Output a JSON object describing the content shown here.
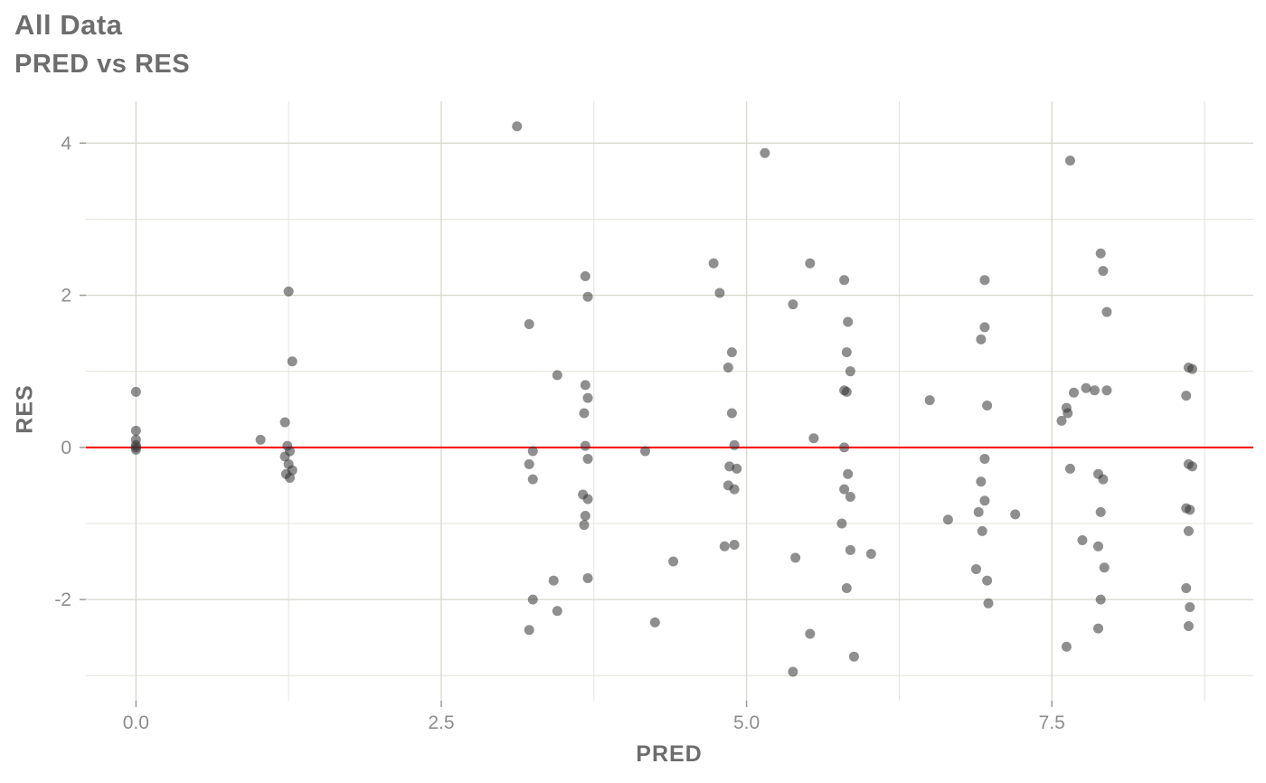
{
  "header": {
    "title": "All Data",
    "subtitle": "PRED vs RES"
  },
  "axes": {
    "xlabel": "PRED",
    "ylabel": "RES"
  },
  "colors": {
    "title_text": "#6d6d6d",
    "tick_text": "#8d8d8d",
    "grid_major": "#d9d9d0",
    "grid_minor": "#e4e4dc",
    "reference_line": "#ff0000",
    "point_fill": "#333333",
    "background": "#ffffff"
  },
  "chart_data": {
    "type": "scatter",
    "title": "All Data",
    "subtitle": "PRED vs RES",
    "xlabel": "PRED",
    "ylabel": "RES",
    "xlim": [
      -0.41,
      9.15
    ],
    "ylim": [
      -3.33,
      4.55
    ],
    "x_ticks": [
      0.0,
      2.5,
      5.0,
      7.5
    ],
    "x_tick_labels": [
      "0.0",
      "2.5",
      "5.0",
      "7.5"
    ],
    "x_minor_ticks": [
      1.25,
      3.75,
      6.25,
      8.75
    ],
    "y_ticks": [
      -2,
      0,
      2,
      4
    ],
    "y_tick_labels": [
      "-2",
      "0",
      "2",
      "4"
    ],
    "y_minor_ticks": [
      -3,
      -1,
      1,
      3
    ],
    "grid": true,
    "legend": "none",
    "reference_line": {
      "y": 0,
      "color": "#ff0000"
    },
    "point_color": "#333333",
    "point_opacity": 0.55,
    "point_radius": 5.5,
    "points": [
      [
        0.0,
        0.73
      ],
      [
        0.0,
        0.22
      ],
      [
        0.0,
        0.1
      ],
      [
        0.0,
        0.03
      ],
      [
        0.0,
        0.0
      ],
      [
        0.0,
        -0.03
      ],
      [
        1.02,
        0.1
      ],
      [
        1.25,
        2.05
      ],
      [
        1.28,
        1.13
      ],
      [
        1.22,
        0.33
      ],
      [
        1.24,
        0.02
      ],
      [
        1.26,
        -0.05
      ],
      [
        1.22,
        -0.12
      ],
      [
        1.25,
        -0.22
      ],
      [
        1.28,
        -0.3
      ],
      [
        1.23,
        -0.35
      ],
      [
        1.26,
        -0.4
      ],
      [
        3.12,
        4.22
      ],
      [
        3.22,
        1.62
      ],
      [
        3.25,
        -0.05
      ],
      [
        3.22,
        -0.22
      ],
      [
        3.25,
        -0.42
      ],
      [
        3.25,
        -2.0
      ],
      [
        3.22,
        -2.4
      ],
      [
        3.45,
        0.95
      ],
      [
        3.42,
        -1.75
      ],
      [
        3.45,
        -2.15
      ],
      [
        3.68,
        2.25
      ],
      [
        3.7,
        1.98
      ],
      [
        3.68,
        0.82
      ],
      [
        3.7,
        0.65
      ],
      [
        3.67,
        0.45
      ],
      [
        3.68,
        0.02
      ],
      [
        3.7,
        -0.15
      ],
      [
        3.66,
        -0.62
      ],
      [
        3.7,
        -0.68
      ],
      [
        3.68,
        -0.9
      ],
      [
        3.67,
        -1.02
      ],
      [
        3.7,
        -1.72
      ],
      [
        4.17,
        -0.05
      ],
      [
        4.25,
        -2.3
      ],
      [
        4.4,
        -1.5
      ],
      [
        4.73,
        2.42
      ],
      [
        4.78,
        2.03
      ],
      [
        4.88,
        1.25
      ],
      [
        4.85,
        1.05
      ],
      [
        4.88,
        0.45
      ],
      [
        4.9,
        0.03
      ],
      [
        4.86,
        -0.25
      ],
      [
        4.92,
        -0.28
      ],
      [
        4.85,
        -0.5
      ],
      [
        4.9,
        -0.55
      ],
      [
        4.82,
        -1.3
      ],
      [
        4.9,
        -1.28
      ],
      [
        5.15,
        3.87
      ],
      [
        5.38,
        1.88
      ],
      [
        5.4,
        -1.45
      ],
      [
        5.38,
        -2.95
      ],
      [
        5.52,
        2.42
      ],
      [
        5.55,
        0.12
      ],
      [
        5.52,
        -2.45
      ],
      [
        5.8,
        2.2
      ],
      [
        5.83,
        1.65
      ],
      [
        5.82,
        1.25
      ],
      [
        5.85,
        1.0
      ],
      [
        5.8,
        0.75
      ],
      [
        5.82,
        0.73
      ],
      [
        5.8,
        0.0
      ],
      [
        5.83,
        -0.35
      ],
      [
        5.8,
        -0.55
      ],
      [
        5.85,
        -0.65
      ],
      [
        5.78,
        -1.0
      ],
      [
        5.85,
        -1.35
      ],
      [
        5.82,
        -1.85
      ],
      [
        5.88,
        -2.75
      ],
      [
        6.02,
        -1.4
      ],
      [
        6.5,
        0.62
      ],
      [
        6.65,
        -0.95
      ],
      [
        6.88,
        -1.6
      ],
      [
        6.95,
        2.2
      ],
      [
        6.95,
        1.58
      ],
      [
        6.92,
        1.42
      ],
      [
        6.97,
        0.55
      ],
      [
        6.95,
        -0.15
      ],
      [
        6.92,
        -0.45
      ],
      [
        6.95,
        -0.7
      ],
      [
        6.9,
        -0.85
      ],
      [
        6.93,
        -1.1
      ],
      [
        6.97,
        -1.75
      ],
      [
        6.98,
        -2.05
      ],
      [
        7.2,
        -0.88
      ],
      [
        7.58,
        0.35
      ],
      [
        7.62,
        0.52
      ],
      [
        7.65,
        3.77
      ],
      [
        7.68,
        0.72
      ],
      [
        7.63,
        0.45
      ],
      [
        7.65,
        -0.28
      ],
      [
        7.62,
        -2.62
      ],
      [
        7.78,
        0.78
      ],
      [
        7.75,
        -1.22
      ],
      [
        7.9,
        2.55
      ],
      [
        7.92,
        2.32
      ],
      [
        7.95,
        1.78
      ],
      [
        7.85,
        0.75
      ],
      [
        7.95,
        0.75
      ],
      [
        7.88,
        -0.35
      ],
      [
        7.92,
        -0.42
      ],
      [
        7.9,
        -0.85
      ],
      [
        7.88,
        -1.3
      ],
      [
        7.93,
        -1.58
      ],
      [
        7.9,
        -2.0
      ],
      [
        7.88,
        -2.38
      ],
      [
        8.62,
        1.05
      ],
      [
        8.65,
        1.03
      ],
      [
        8.6,
        0.68
      ],
      [
        8.62,
        -0.22
      ],
      [
        8.65,
        -0.25
      ],
      [
        8.6,
        -0.8
      ],
      [
        8.63,
        -0.82
      ],
      [
        8.62,
        -1.1
      ],
      [
        8.6,
        -1.85
      ],
      [
        8.63,
        -2.1
      ],
      [
        8.62,
        -2.35
      ]
    ]
  }
}
